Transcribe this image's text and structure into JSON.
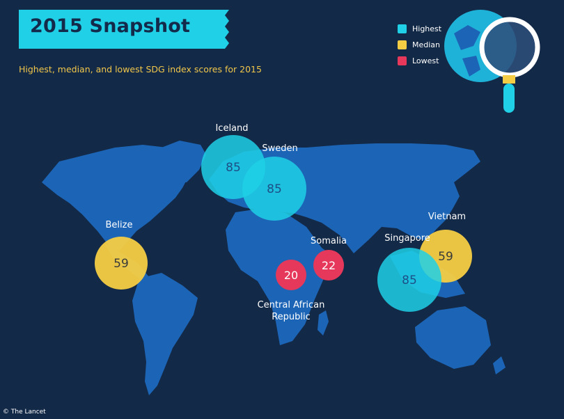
{
  "header": {
    "title": "2015 Snapshot",
    "subtitle": "Highest, median, and lowest SDG index scores for 2015"
  },
  "legend": {
    "items": [
      {
        "label": "Highest",
        "color": "#1fd0e6"
      },
      {
        "label": "Median",
        "color": "#f5cd45"
      },
      {
        "label": "Lowest",
        "color": "#e5385a"
      }
    ]
  },
  "colors": {
    "background": "#132948",
    "land": "#1c65b6",
    "banner": "#1fd0e6"
  },
  "map_points": [
    {
      "country": "Iceland",
      "score": "85",
      "category": "highest"
    },
    {
      "country": "Sweden",
      "score": "85",
      "category": "highest"
    },
    {
      "country": "Belize",
      "score": "59",
      "category": "median"
    },
    {
      "country": "Somalia",
      "score": "22",
      "category": "lowest"
    },
    {
      "country": "Central African Republic",
      "score": "20",
      "category": "lowest"
    },
    {
      "country": "Singapore",
      "score": "85",
      "category": "highest"
    },
    {
      "country": "Vietnam",
      "score": "59",
      "category": "median"
    }
  ],
  "credit": "© The Lancet"
}
